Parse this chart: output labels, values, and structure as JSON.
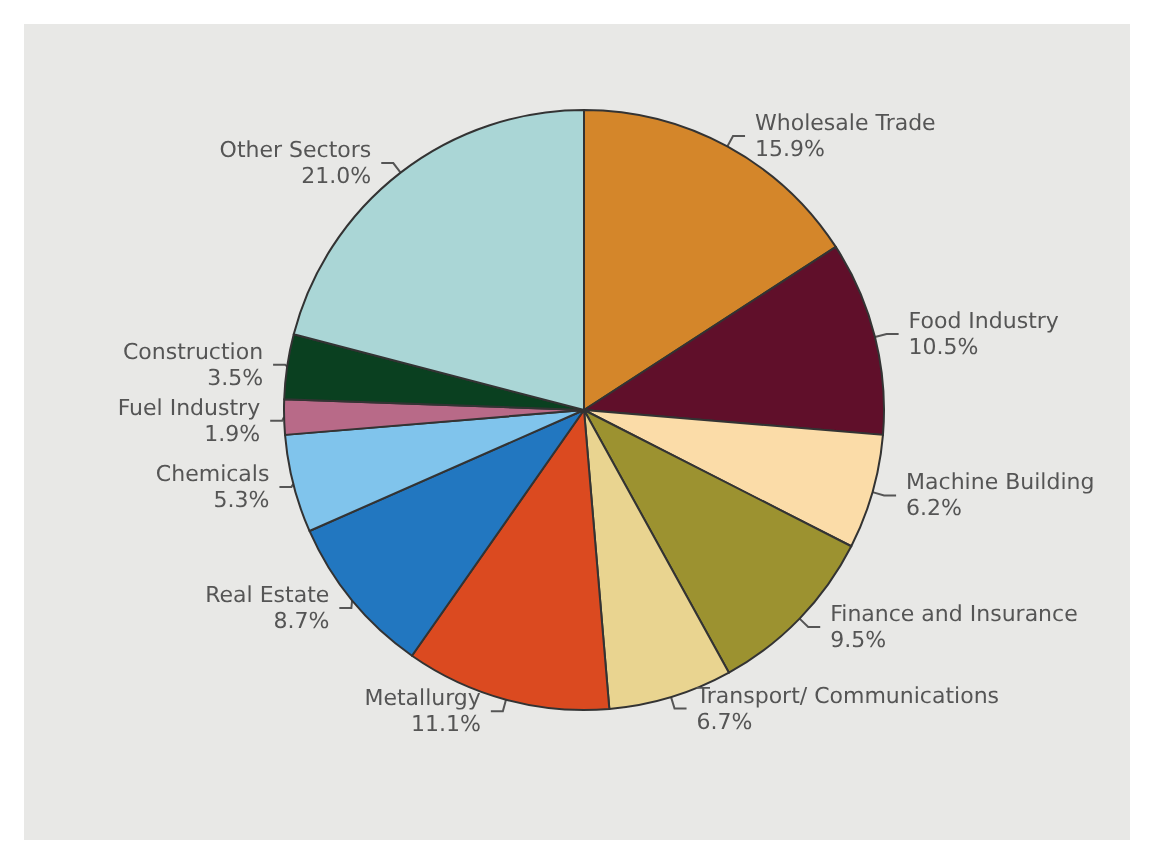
{
  "chart_data": {
    "type": "pie",
    "categories": [
      "Wholesale Trade",
      "Food Industry",
      "Machine Building",
      "Finance and Insurance",
      "Transport/ Communications",
      "Metallurgy",
      "Real Estate",
      "Chemicals",
      "Fuel Industry",
      "Construction",
      "Other Sectors"
    ],
    "values": [
      15.9,
      10.5,
      6.2,
      9.5,
      6.7,
      11.1,
      8.7,
      5.3,
      1.9,
      3.5,
      21.0
    ],
    "value_labels": [
      "15.9%",
      "10.5%",
      "6.2%",
      "9.5%",
      "6.7%",
      "11.1%",
      "8.7%",
      "5.3%",
      "1.9%",
      "3.5%",
      "21.0%"
    ],
    "colors": [
      "#d4862a",
      "#600f2a",
      "#fbdca8",
      "#9c9230",
      "#e9d490",
      "#db4a20",
      "#2277c0",
      "#80c4ec",
      "#b86a88",
      "#0a4020",
      "#aad6d6"
    ],
    "legend": false
  }
}
